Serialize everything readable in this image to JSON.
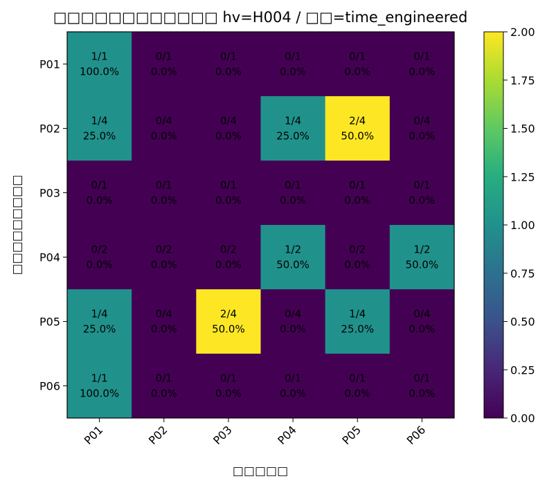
{
  "chart_data": {
    "type": "heatmap",
    "title": "□□□□□□□□□□□□ hv=H004 / □□=time_engineered",
    "xlabel": "□□□□□",
    "ylabel": "□□□□□□□□□",
    "x_categories": [
      "P01",
      "P02",
      "P03",
      "P04",
      "P05",
      "P06"
    ],
    "y_categories": [
      "P01",
      "P02",
      "P03",
      "P04",
      "P05",
      "P06"
    ],
    "values": [
      [
        1,
        0,
        0,
        0,
        0,
        0
      ],
      [
        1,
        0,
        0,
        1,
        2,
        0
      ],
      [
        0,
        0,
        0,
        0,
        0,
        0
      ],
      [
        0,
        0,
        0,
        1,
        0,
        1
      ],
      [
        1,
        0,
        2,
        0,
        1,
        0
      ],
      [
        1,
        0,
        0,
        0,
        0,
        0
      ]
    ],
    "cell_labels": [
      [
        [
          "1/1",
          "100.0%"
        ],
        [
          "0/1",
          "0.0%"
        ],
        [
          "0/1",
          "0.0%"
        ],
        [
          "0/1",
          "0.0%"
        ],
        [
          "0/1",
          "0.0%"
        ],
        [
          "0/1",
          "0.0%"
        ]
      ],
      [
        [
          "1/4",
          "25.0%"
        ],
        [
          "0/4",
          "0.0%"
        ],
        [
          "0/4",
          "0.0%"
        ],
        [
          "1/4",
          "25.0%"
        ],
        [
          "2/4",
          "50.0%"
        ],
        [
          "0/4",
          "0.0%"
        ]
      ],
      [
        [
          "0/1",
          "0.0%"
        ],
        [
          "0/1",
          "0.0%"
        ],
        [
          "0/1",
          "0.0%"
        ],
        [
          "0/1",
          "0.0%"
        ],
        [
          "0/1",
          "0.0%"
        ],
        [
          "0/1",
          "0.0%"
        ]
      ],
      [
        [
          "0/2",
          "0.0%"
        ],
        [
          "0/2",
          "0.0%"
        ],
        [
          "0/2",
          "0.0%"
        ],
        [
          "1/2",
          "50.0%"
        ],
        [
          "0/2",
          "0.0%"
        ],
        [
          "1/2",
          "50.0%"
        ]
      ],
      [
        [
          "1/4",
          "25.0%"
        ],
        [
          "0/4",
          "0.0%"
        ],
        [
          "2/4",
          "50.0%"
        ],
        [
          "0/4",
          "0.0%"
        ],
        [
          "1/4",
          "25.0%"
        ],
        [
          "0/4",
          "0.0%"
        ]
      ],
      [
        [
          "1/1",
          "100.0%"
        ],
        [
          "0/1",
          "0.0%"
        ],
        [
          "0/1",
          "0.0%"
        ],
        [
          "0/1",
          "0.0%"
        ],
        [
          "0/1",
          "0.0%"
        ],
        [
          "0/1",
          "0.0%"
        ]
      ]
    ],
    "colormap": "viridis",
    "color_stops": [
      "#440154",
      "#21918c",
      "#fde725"
    ],
    "colorbar": {
      "vmin": 0.0,
      "vmax": 2.0,
      "ticks": [
        "0.00",
        "0.25",
        "0.50",
        "0.75",
        "1.00",
        "1.25",
        "1.50",
        "1.75",
        "2.00"
      ]
    },
    "grid": false
  }
}
